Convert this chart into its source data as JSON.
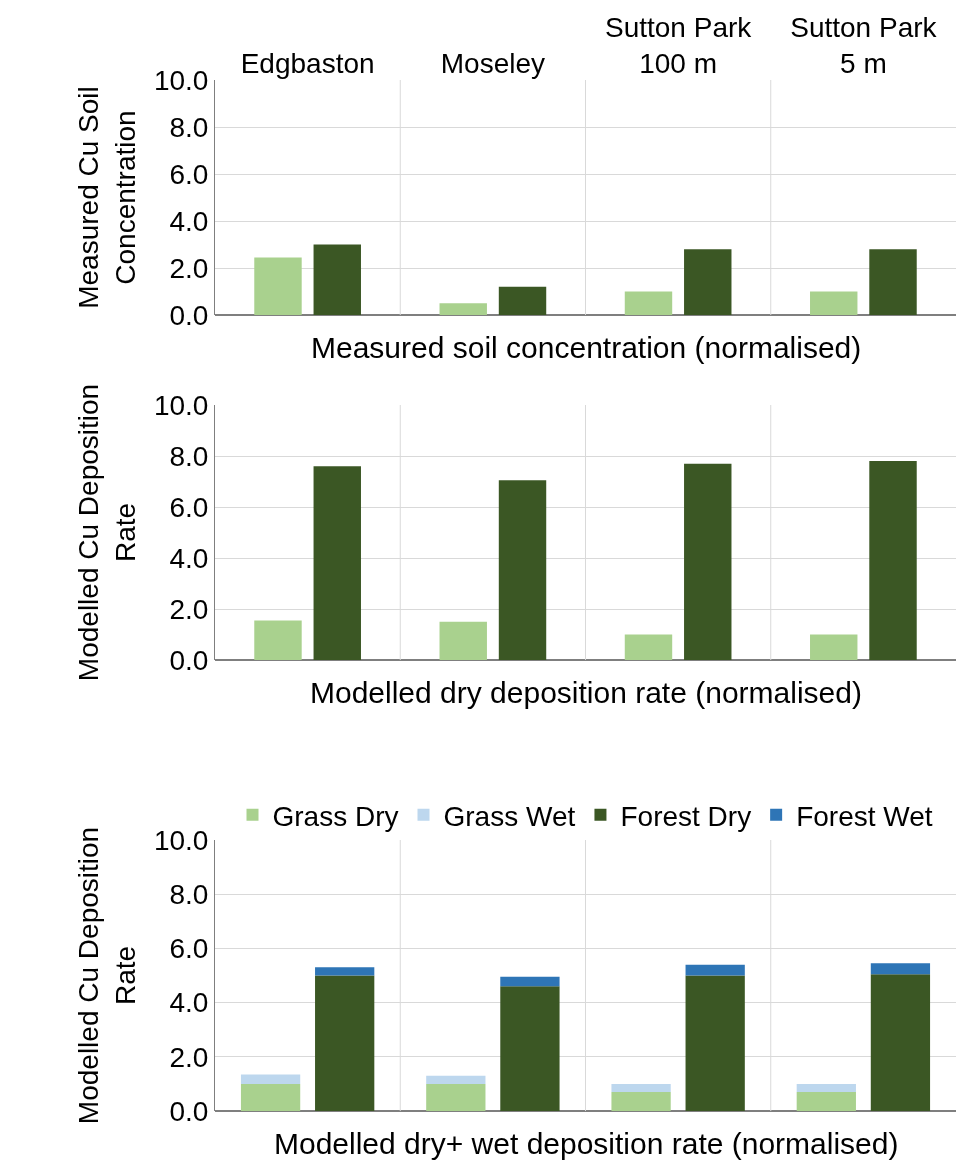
{
  "chart_data": [
    {
      "type": "bar",
      "xlabel": "Measured soil concentration (normalised)",
      "ylabel": "Measured Cu Soil Concentration",
      "categories": [
        "Edgbaston",
        "Moseley",
        "Sutton Park 100 m",
        "Sutton Park 5 m"
      ],
      "ylim": [
        0,
        10
      ],
      "yticks": [
        {
          "value": 0,
          "label": "0.0"
        },
        {
          "value": 2,
          "label": "2.0"
        },
        {
          "value": 4,
          "label": "4.0"
        },
        {
          "value": 6,
          "label": "6.0"
        },
        {
          "value": 8,
          "label": "8.0"
        },
        {
          "value": 10,
          "label": "10.0"
        }
      ],
      "grid": true,
      "series": [
        {
          "color": "#a9d18e",
          "values": [
            2.45,
            0.5,
            1.0,
            1.0
          ]
        },
        {
          "color": "#3b5724",
          "values": [
            3.0,
            1.2,
            2.8,
            2.8
          ]
        }
      ]
    },
    {
      "type": "bar",
      "xlabel": "Modelled dry deposition rate (normalised)",
      "ylabel": "Modelled Cu Deposition Rate",
      "categories": [
        null,
        null,
        null,
        null
      ],
      "tick_labels": "y",
      "ylim": [
        0,
        10
      ],
      "yticks": [
        {
          "value": 0,
          "label": "0.0"
        },
        {
          "value": 2,
          "label": "2.0"
        },
        {
          "value": 4,
          "label": "4.0"
        },
        {
          "value": 6,
          "label": "6.0"
        },
        {
          "value": 8,
          "label": "8.0"
        },
        {
          "value": 10,
          "label": "10.0"
        }
      ],
      "grid": true,
      "series": [
        {
          "color": "#a9d18e",
          "values": [
            1.55,
            1.5,
            1.0,
            1.0
          ]
        },
        {
          "color": "#3b5724",
          "values": [
            7.6,
            7.05,
            7.7,
            7.8
          ]
        }
      ]
    },
    {
      "type": "bar",
      "xlabel": "Modelled dry+ wet deposition rate (normalised)",
      "ylabel": "Modelled Cu Deposition Rate",
      "categories": [
        null,
        null,
        null,
        null,
        null,
        null,
        null,
        null
      ],
      "tick_labels": "y",
      "ylim": [
        0,
        10
      ],
      "yticks": [
        {
          "value": 0,
          "label": "0.0"
        },
        {
          "value": 2,
          "label": "2.0"
        },
        {
          "value": 4,
          "label": "4.0"
        },
        {
          "value": 6,
          "label": "6.0"
        },
        {
          "value": 8,
          "label": "8.0"
        },
        {
          "value": 10,
          "label": "10.0"
        }
      ],
      "grid": true,
      "legend": "top",
      "stacked": true,
      "series": [
        {
          "name": "Grass Dry",
          "color": "#a9d18e",
          "values": [
            1.0,
            null,
            1.0,
            null,
            0.7,
            null,
            0.7,
            null
          ]
        },
        {
          "name": "Grass Wet",
          "color": "#bdd7ee",
          "values": [
            0.35,
            null,
            0.3,
            null,
            0.3,
            null,
            0.3,
            null
          ]
        },
        {
          "name": "Forest Dry",
          "color": "#3b5724",
          "values": [
            null,
            5.0,
            null,
            4.6,
            null,
            5.0,
            null,
            5.05
          ]
        },
        {
          "name": "Forest Wet",
          "color": "#2e75b6",
          "values": [
            null,
            0.3,
            null,
            0.35,
            null,
            0.4,
            null,
            0.4
          ]
        }
      ]
    }
  ]
}
